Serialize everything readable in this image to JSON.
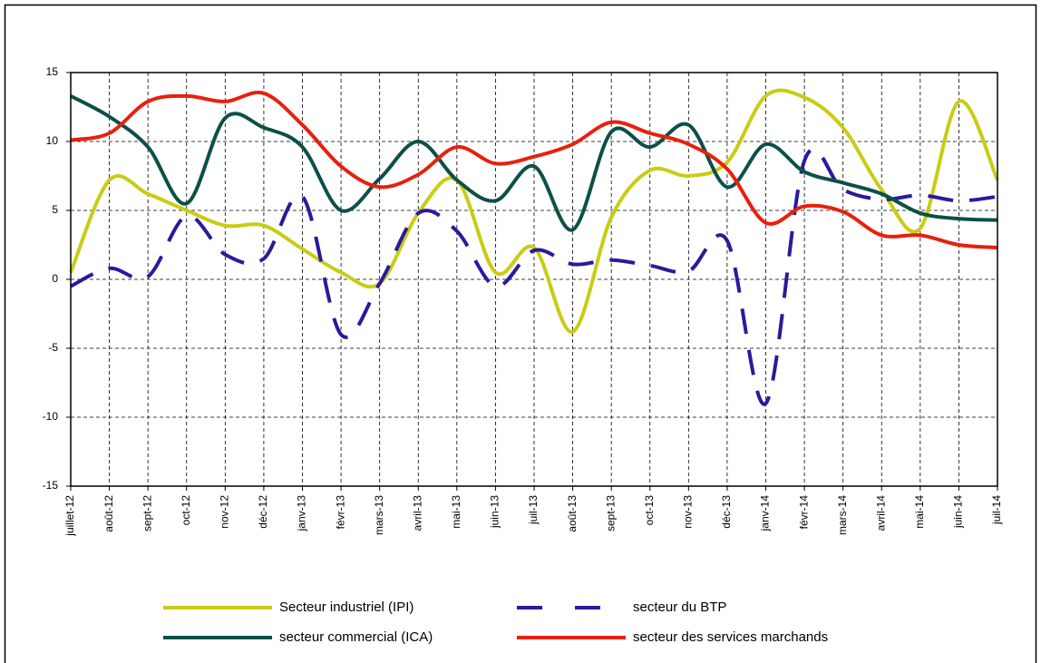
{
  "chart_data": {
    "type": "line",
    "smooth": true,
    "grid": true,
    "categories": [
      "juillet-12",
      "août-12",
      "sept-12",
      "oct-12",
      "nov-12",
      "déc-12",
      "janv-13",
      "févr-13",
      "mars-13",
      "avril-13",
      "mai-13",
      "juin-13",
      "juil-13",
      "août-13",
      "sept-13",
      "oct-13",
      "nov-13",
      "déc-13",
      "janv-14",
      "févr-14",
      "mars-14",
      "avril-14",
      "mai-14",
      "juin-14",
      "juil-14"
    ],
    "ylim": [
      -15,
      15
    ],
    "yticks": [
      -15,
      -10,
      -5,
      0,
      5,
      10,
      15
    ],
    "series": [
      {
        "name": "Secteur industriel (IPI)",
        "color": "#c9cc14",
        "dashed": false,
        "values": [
          0.5,
          7.2,
          6.2,
          5.0,
          3.9,
          3.9,
          2.2,
          0.5,
          -0.3,
          4.8,
          7.2,
          0.5,
          2.3,
          -3.8,
          4.5,
          7.9,
          7.5,
          8.5,
          13.3,
          13.2,
          11.0,
          6.5,
          3.7,
          12.9,
          7.2
        ]
      },
      {
        "name": "secteur du BTP",
        "color": "#2a1a9c",
        "dashed": true,
        "values": [
          -0.5,
          0.8,
          0.2,
          4.6,
          1.8,
          1.5,
          6.0,
          -4.0,
          -0.3,
          4.8,
          3.5,
          -0.5,
          2.1,
          1.1,
          1.4,
          1.0,
          0.6,
          2.8,
          -9.0,
          8.6,
          6.5,
          5.8,
          6.1,
          5.7,
          6.0
        ]
      },
      {
        "name": "secteur commercial (ICA)",
        "color": "#0c5048",
        "dashed": false,
        "values": [
          13.3,
          11.8,
          9.6,
          5.5,
          11.7,
          11.0,
          9.6,
          5.0,
          7.3,
          10.0,
          7.2,
          5.7,
          8.2,
          3.6,
          10.7,
          9.6,
          11.2,
          6.7,
          9.8,
          7.8,
          7.0,
          6.2,
          4.8,
          4.4,
          4.3
        ]
      },
      {
        "name": "secteur des services marchands",
        "color": "#e8200c",
        "dashed": false,
        "values": [
          10.1,
          10.6,
          12.9,
          13.3,
          12.9,
          13.5,
          11.2,
          8.2,
          6.7,
          7.6,
          9.6,
          8.4,
          8.9,
          9.8,
          11.4,
          10.6,
          9.8,
          8.0,
          4.1,
          5.3,
          4.9,
          3.2,
          3.2,
          2.5,
          2.3
        ]
      }
    ]
  }
}
